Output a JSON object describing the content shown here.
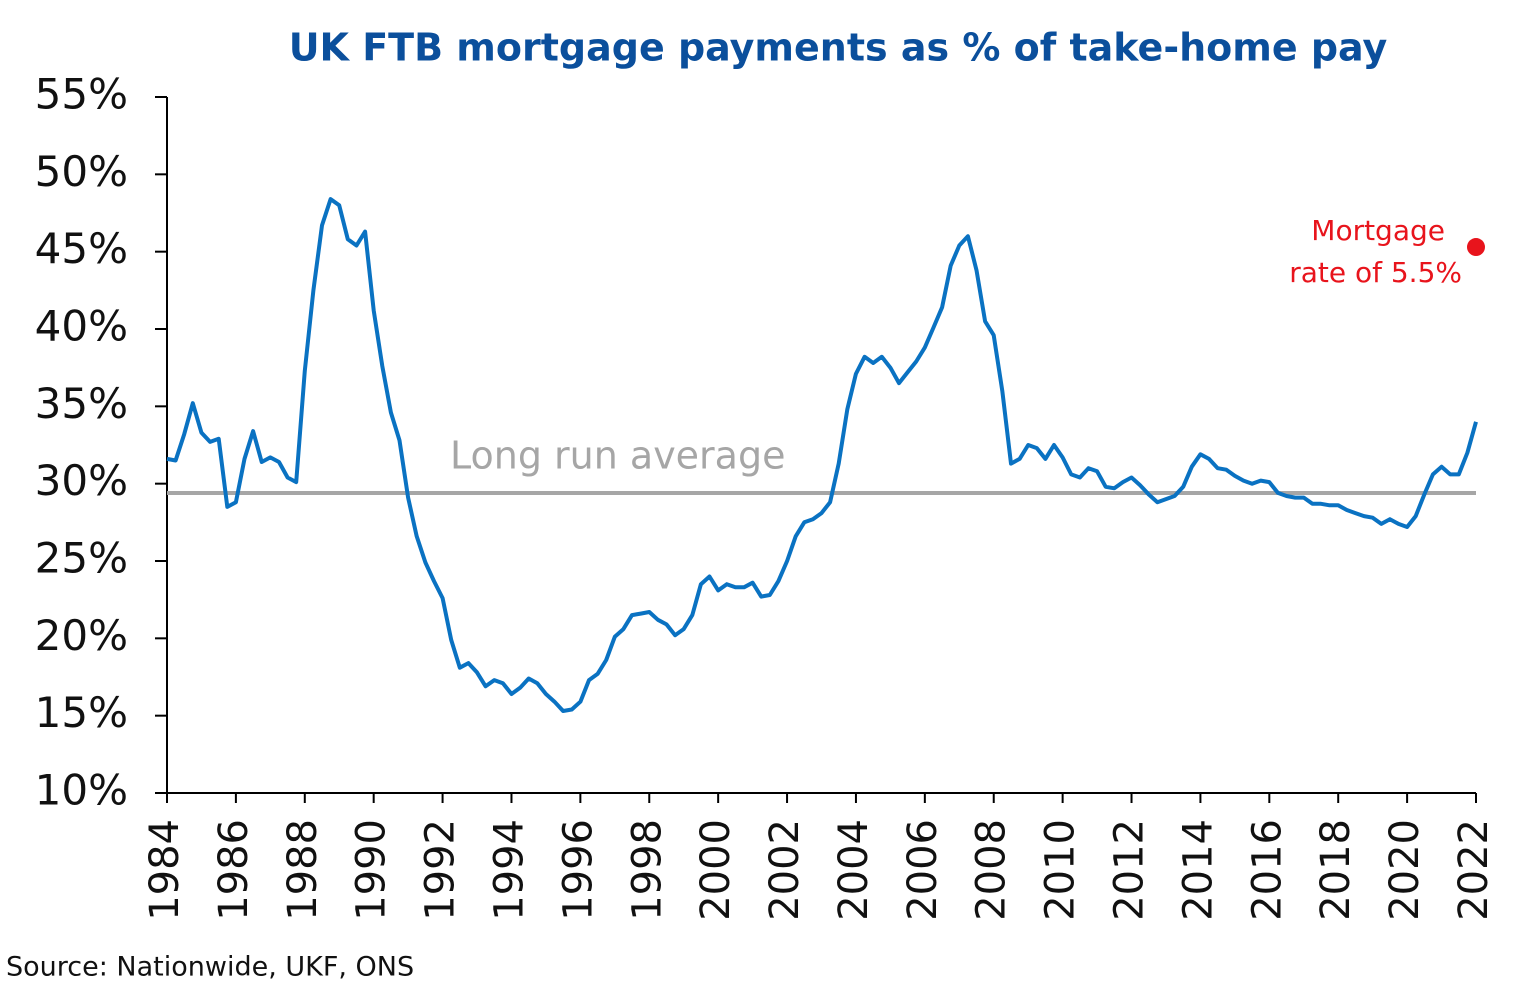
{
  "chart_data": {
    "type": "line",
    "title": "UK FTB mortgage payments as % of take-home pay",
    "x": [
      1984,
      1984.25,
      1984.5,
      1984.75,
      1985,
      1985.25,
      1985.5,
      1985.75,
      1986,
      1986.25,
      1986.5,
      1986.75,
      1987,
      1987.25,
      1987.5,
      1987.75,
      1988,
      1988.25,
      1988.5,
      1988.75,
      1989,
      1989.25,
      1989.5,
      1989.75,
      1990,
      1990.25,
      1990.5,
      1990.75,
      1991,
      1991.25,
      1991.5,
      1991.75,
      1992,
      1992.25,
      1992.5,
      1992.75,
      1993,
      1993.25,
      1993.5,
      1993.75,
      1994,
      1994.25,
      1994.5,
      1994.75,
      1995,
      1995.25,
      1995.5,
      1995.75,
      1996,
      1996.25,
      1996.5,
      1996.75,
      1997,
      1997.25,
      1997.5,
      1997.75,
      1998,
      1998.25,
      1998.5,
      1998.75,
      1999,
      1999.25,
      1999.5,
      1999.75,
      2000,
      2000.25,
      2000.5,
      2000.75,
      2001,
      2001.25,
      2001.5,
      2001.75,
      2002,
      2002.25,
      2002.5,
      2002.75,
      2003,
      2003.25,
      2003.5,
      2003.75,
      2004,
      2004.25,
      2004.5,
      2004.75,
      2005,
      2005.25,
      2005.5,
      2005.75,
      2006,
      2006.25,
      2006.5,
      2006.75,
      2007,
      2007.25,
      2007.5,
      2007.75,
      2008,
      2008.25,
      2008.5,
      2008.75,
      2009,
      2009.25,
      2009.5,
      2009.75,
      2010,
      2010.25,
      2010.5,
      2010.75,
      2011,
      2011.25,
      2011.5,
      2011.75,
      2012,
      2012.25,
      2012.5,
      2012.75,
      2013,
      2013.25,
      2013.5,
      2013.75,
      2014,
      2014.25,
      2014.5,
      2014.75,
      2015,
      2015.25,
      2015.5,
      2015.75,
      2016,
      2016.25,
      2016.5,
      2016.75,
      2017,
      2017.25,
      2017.5,
      2017.75,
      2018,
      2018.25,
      2018.5,
      2018.75,
      2019,
      2019.25,
      2019.5,
      2019.75,
      2020,
      2020.25,
      2020.5,
      2020.75,
      2021,
      2021.25,
      2021.5,
      2021.75,
      2022
    ],
    "values": [
      31.6,
      31.5,
      33.2,
      35.2,
      33.3,
      32.7,
      32.9,
      28.5,
      28.8,
      31.6,
      33.4,
      31.4,
      31.7,
      31.4,
      30.4,
      30.1,
      37.3,
      42.5,
      46.7,
      48.4,
      48.0,
      45.8,
      45.4,
      46.3,
      41.2,
      37.6,
      34.6,
      32.8,
      29.1,
      26.6,
      24.9,
      23.7,
      22.6,
      19.9,
      18.1,
      18.4,
      17.8,
      16.9,
      17.3,
      17.1,
      16.4,
      16.8,
      17.4,
      17.1,
      16.4,
      15.9,
      15.3,
      15.4,
      15.9,
      17.3,
      17.7,
      18.6,
      20.1,
      20.6,
      21.5,
      21.6,
      21.7,
      21.2,
      20.9,
      20.2,
      20.6,
      21.5,
      23.5,
      24.0,
      23.1,
      23.5,
      23.3,
      23.3,
      23.6,
      22.7,
      22.8,
      23.7,
      25.0,
      26.6,
      27.5,
      27.7,
      28.1,
      28.8,
      31.3,
      34.8,
      37.1,
      38.2,
      37.8,
      38.2,
      37.5,
      36.5,
      37.2,
      37.9,
      38.8,
      40.1,
      41.4,
      44.1,
      45.4,
      46.0,
      43.8,
      40.5,
      39.6,
      36.0,
      31.3,
      31.6,
      32.5,
      32.3,
      31.6,
      32.5,
      31.7,
      30.6,
      30.4,
      31.0,
      30.8,
      29.8,
      29.7,
      30.1,
      30.4,
      29.9,
      29.3,
      28.8,
      29.0,
      29.2,
      29.8,
      31.1,
      31.9,
      31.6,
      31.0,
      30.9,
      30.5,
      30.2,
      30.0,
      30.2,
      30.1,
      29.4,
      29.2,
      29.1,
      29.1,
      28.7,
      28.7,
      28.6,
      28.6,
      28.3,
      28.1,
      27.9,
      27.8,
      27.4,
      27.7,
      27.4,
      27.2,
      27.9,
      29.3,
      30.6,
      31.1,
      30.6,
      30.6,
      32.0,
      34.0
    ],
    "color": "#0a72c2",
    "xlim": [
      1984,
      2022
    ],
    "xticks": [
      1984,
      1986,
      1988,
      1990,
      1992,
      1994,
      1996,
      1998,
      2000,
      2002,
      2004,
      2006,
      2008,
      2010,
      2012,
      2014,
      2016,
      2018,
      2020,
      2022
    ],
    "ylim": [
      10,
      55
    ],
    "yticks": [
      {
        "value": 10,
        "label": "10%"
      },
      {
        "value": 15,
        "label": "15%"
      },
      {
        "value": 20,
        "label": "20%"
      },
      {
        "value": 25,
        "label": "25%"
      },
      {
        "value": 30,
        "label": "30%"
      },
      {
        "value": 35,
        "label": "35%"
      },
      {
        "value": 40,
        "label": "40%"
      },
      {
        "value": 45,
        "label": "45%"
      },
      {
        "value": 50,
        "label": "50%"
      },
      {
        "value": 55,
        "label": "55%"
      }
    ],
    "reference_line": {
      "value": 29.4,
      "label": "Long run average",
      "color": "#a6a6a6"
    },
    "point_annotation": {
      "x": 2022,
      "value": 45.3,
      "text": [
        "Mortgage",
        "rate of 5.5%"
      ],
      "color": "#e8141c"
    },
    "source": "Source: Nationwide, UKF, ONS"
  }
}
